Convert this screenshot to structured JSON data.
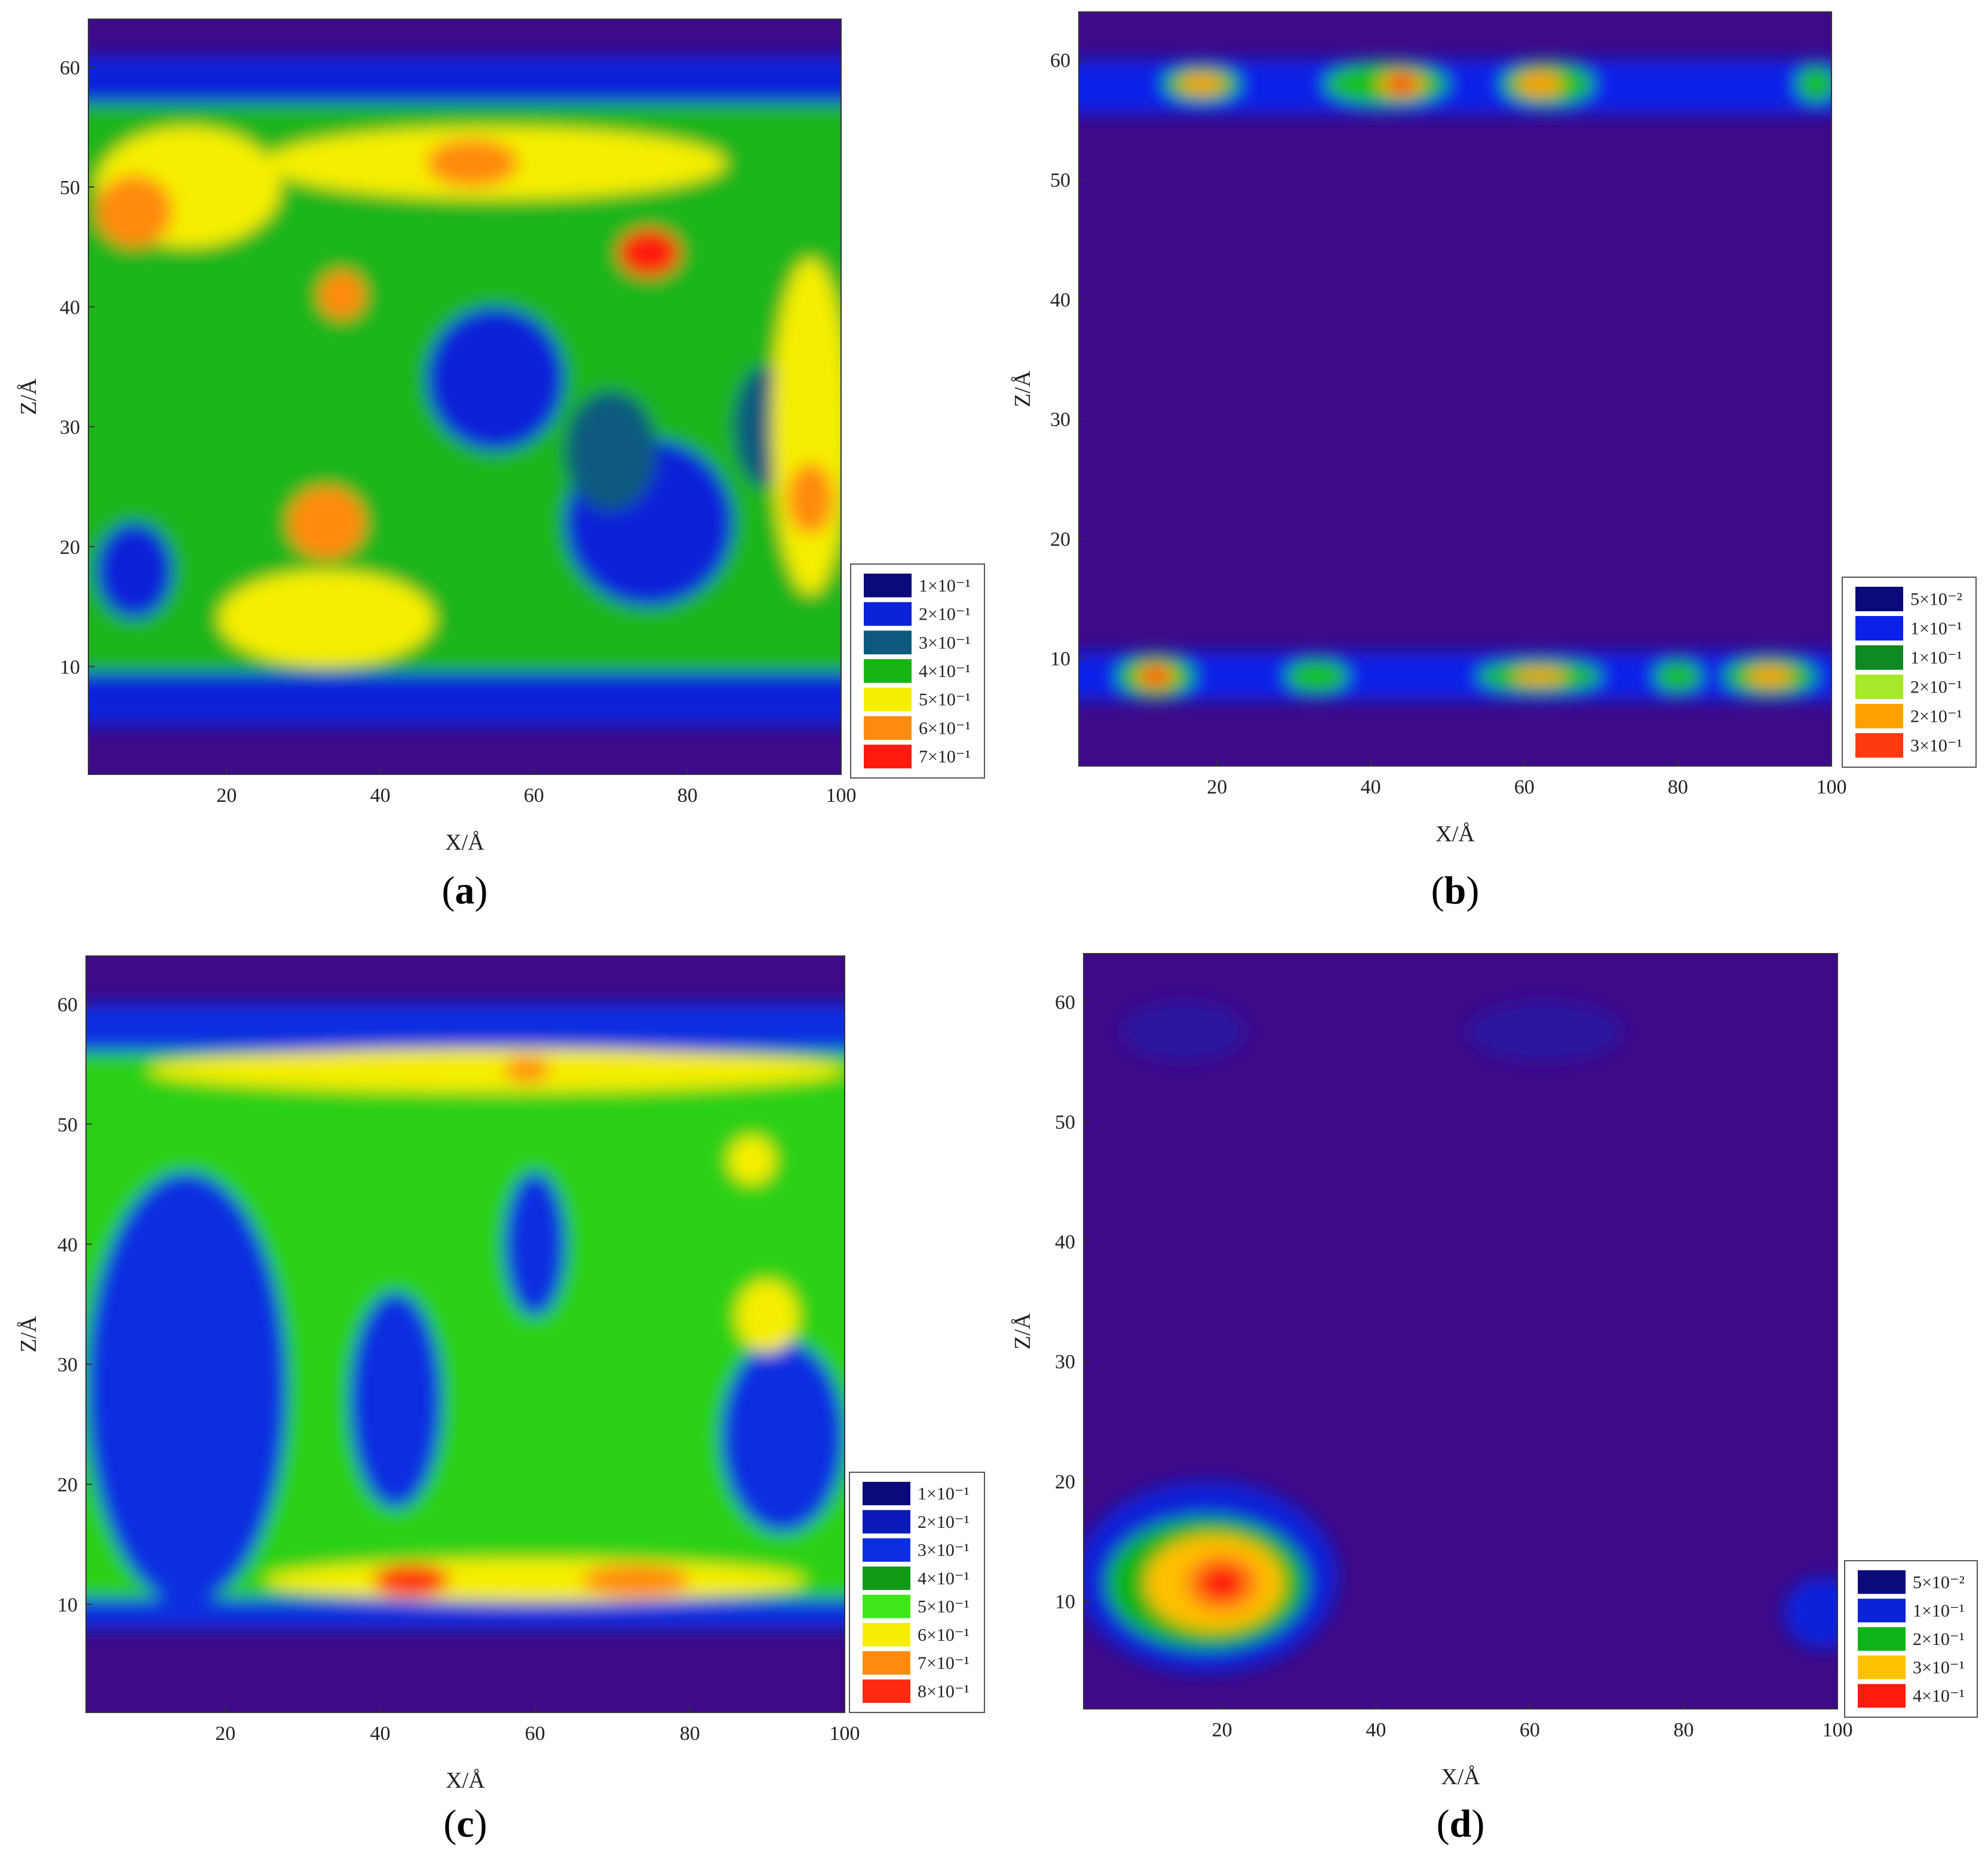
{
  "chart_data": [
    {
      "type": "heatmap",
      "panel_label": "a",
      "xlabel": "X/Å",
      "ylabel": "Z/Å",
      "xlim": [
        2,
        100
      ],
      "ylim": [
        1,
        64
      ],
      "x_ticks": [
        20,
        40,
        60,
        80,
        100
      ],
      "y_ticks": [
        10,
        20,
        30,
        40,
        50,
        60
      ],
      "legend": [
        {
          "label": "1×10⁻¹",
          "color": "#0a0a7a"
        },
        {
          "label": "2×10⁻¹",
          "color": "#0a22d8"
        },
        {
          "label": "3×10⁻¹",
          "color": "#0e5a7e"
        },
        {
          "label": "4×10⁻¹",
          "color": "#17b514"
        },
        {
          "label": "5×10⁻¹",
          "color": "#f5ee00"
        },
        {
          "label": "6×10⁻¹",
          "color": "#ff8a10"
        },
        {
          "label": "7×10⁻¹",
          "color": "#ff1a10"
        }
      ],
      "background": "#3d0a8a",
      "band_rows": [
        {
          "z": [
            5,
            9.5
          ],
          "color": "#0a22d8"
        },
        {
          "z": [
            56,
            61
          ],
          "color": "#0a22d8"
        },
        {
          "z": [
            9.5,
            57
          ],
          "color": "#1fb51a"
        }
      ],
      "regions": [
        {
          "x": 75,
          "z": 22,
          "rx": 11,
          "ry": 7,
          "color": "#0a22d8"
        },
        {
          "x": 55,
          "z": 34,
          "rx": 9,
          "ry": 6,
          "color": "#0a22d8"
        },
        {
          "x": 8,
          "z": 18,
          "rx": 5,
          "ry": 4,
          "color": "#0a22d8"
        },
        {
          "x": 70,
          "z": 28,
          "rx": 6,
          "ry": 5,
          "color": "#0e5a7e"
        },
        {
          "x": 90,
          "z": 30,
          "rx": 4,
          "ry": 5,
          "color": "#0e5a7e"
        },
        {
          "x": 15,
          "z": 50,
          "rx": 12,
          "ry": 5,
          "color": "#f5ee00"
        },
        {
          "x": 55,
          "z": 52,
          "rx": 30,
          "ry": 3,
          "color": "#f5ee00"
        },
        {
          "x": 96,
          "z": 30,
          "rx": 5,
          "ry": 14,
          "color": "#f5ee00"
        },
        {
          "x": 33,
          "z": 14,
          "rx": 14,
          "ry": 4,
          "color": "#f5ee00"
        },
        {
          "x": 8,
          "z": 48,
          "rx": 5,
          "ry": 3,
          "color": "#ff8a10"
        },
        {
          "x": 52,
          "z": 52,
          "rx": 6,
          "ry": 2,
          "color": "#ff8a10"
        },
        {
          "x": 33,
          "z": 22,
          "rx": 5,
          "ry": 3,
          "color": "#ff8a10"
        },
        {
          "x": 96,
          "z": 24,
          "rx": 3,
          "ry": 3,
          "color": "#ff8a10"
        },
        {
          "x": 75,
          "z": 44.5,
          "rx": 4,
          "ry": 2,
          "color": "#ff1a10"
        },
        {
          "x": 35,
          "z": 41,
          "rx": 3,
          "ry": 2,
          "color": "#ff8a10"
        }
      ]
    },
    {
      "type": "heatmap",
      "panel_label": "b",
      "xlabel": "X/Å",
      "ylabel": "Z/Å",
      "xlim": [
        2,
        100
      ],
      "ylim": [
        1,
        64
      ],
      "x_ticks": [
        20,
        40,
        60,
        80,
        100
      ],
      "y_ticks": [
        10,
        20,
        30,
        40,
        50,
        60
      ],
      "legend": [
        {
          "label": "5×10⁻²",
          "color": "#0a0a7a"
        },
        {
          "label": "1×10⁻¹",
          "color": "#0a22e8"
        },
        {
          "label": "1×10⁻¹",
          "color": "#0f8a22"
        },
        {
          "label": "2×10⁻¹",
          "color": "#a8e82a"
        },
        {
          "label": "2×10⁻¹",
          "color": "#ffa000"
        },
        {
          "label": "3×10⁻¹",
          "color": "#ff3a10"
        }
      ],
      "background": "#3d0a8a",
      "band_rows": [
        {
          "z": [
            55.5,
            60
          ],
          "color": "#0a22e8"
        },
        {
          "z": [
            6.5,
            10.5
          ],
          "color": "#0a22e8"
        }
      ],
      "regions": [
        {
          "x": 18,
          "z": 58,
          "rx": 5,
          "ry": 1.5,
          "color": "#18c018"
        },
        {
          "x": 42,
          "z": 58,
          "rx": 8,
          "ry": 1.8,
          "color": "#18c018"
        },
        {
          "x": 63,
          "z": 58,
          "rx": 6,
          "ry": 1.8,
          "color": "#18c018"
        },
        {
          "x": 98,
          "z": 58,
          "rx": 2.5,
          "ry": 1.5,
          "color": "#18c018"
        },
        {
          "x": 12,
          "z": 8.5,
          "rx": 5,
          "ry": 1.8,
          "color": "#18c018"
        },
        {
          "x": 33,
          "z": 8.5,
          "rx": 4,
          "ry": 1.4,
          "color": "#18c018"
        },
        {
          "x": 62,
          "z": 8.5,
          "rx": 8,
          "ry": 1.4,
          "color": "#18c018"
        },
        {
          "x": 80,
          "z": 8.5,
          "rx": 3,
          "ry": 1.3,
          "color": "#18c018"
        },
        {
          "x": 92,
          "z": 8.5,
          "rx": 6,
          "ry": 1.6,
          "color": "#18c018"
        },
        {
          "x": 18,
          "z": 58,
          "rx": 3,
          "ry": 0.8,
          "color": "#ffa000"
        },
        {
          "x": 44,
          "z": 58,
          "rx": 3,
          "ry": 1.0,
          "color": "#ffa000"
        },
        {
          "x": 62,
          "z": 58,
          "rx": 3,
          "ry": 1.0,
          "color": "#ffa000"
        },
        {
          "x": 12,
          "z": 8.5,
          "rx": 2.5,
          "ry": 1.0,
          "color": "#ffa000"
        },
        {
          "x": 62,
          "z": 8.5,
          "rx": 3.5,
          "ry": 0.6,
          "color": "#ffa000"
        },
        {
          "x": 92,
          "z": 8.5,
          "rx": 3,
          "ry": 0.8,
          "color": "#ffa000"
        },
        {
          "x": 44,
          "z": 58,
          "rx": 1.5,
          "ry": 0.8,
          "color": "#ff1a10"
        },
        {
          "x": 12,
          "z": 8.5,
          "rx": 1.5,
          "ry": 0.7,
          "color": "#ff1a10"
        }
      ]
    },
    {
      "type": "heatmap",
      "panel_label": "c",
      "xlabel": "X/Å",
      "ylabel": "Z/Å",
      "xlim": [
        2,
        100
      ],
      "ylim": [
        1,
        64
      ],
      "x_ticks": [
        20,
        40,
        60,
        80,
        100
      ],
      "y_ticks": [
        10,
        20,
        30,
        40,
        50,
        60
      ],
      "legend": [
        {
          "label": "1×10⁻¹",
          "color": "#0a0a7a"
        },
        {
          "label": "2×10⁻¹",
          "color": "#0a1ab8"
        },
        {
          "label": "3×10⁻¹",
          "color": "#0a2ee0"
        },
        {
          "label": "4×10⁻¹",
          "color": "#0f9a18"
        },
        {
          "label": "5×10⁻¹",
          "color": "#3ee81a"
        },
        {
          "label": "6×10⁻¹",
          "color": "#f5ee00"
        },
        {
          "label": "7×10⁻¹",
          "color": "#ff8a10"
        },
        {
          "label": "8×10⁻¹",
          "color": "#ff2a10"
        }
      ],
      "background": "#3d0a8a",
      "band_rows": [
        {
          "z": [
            8,
            10.5
          ],
          "color": "#0a2ee0"
        },
        {
          "z": [
            56,
            60
          ],
          "color": "#0a2ee0"
        },
        {
          "z": [
            10.5,
            56
          ],
          "color": "#2ad018"
        }
      ],
      "regions": [
        {
          "x": 15,
          "z": 28,
          "rx": 13,
          "ry": 18,
          "color": "#0a2ee0"
        },
        {
          "x": 92,
          "z": 24,
          "rx": 8,
          "ry": 8,
          "color": "#0a2ee0"
        },
        {
          "x": 42,
          "z": 27,
          "rx": 6,
          "ry": 9,
          "color": "#0a2ee0"
        },
        {
          "x": 60,
          "z": 40,
          "rx": 4,
          "ry": 6,
          "color": "#0a2ee0"
        },
        {
          "x": 55,
          "z": 54.5,
          "rx": 45,
          "ry": 1.8,
          "color": "#f5ee00"
        },
        {
          "x": 60,
          "z": 12,
          "rx": 35,
          "ry": 1.8,
          "color": "#f5ee00"
        },
        {
          "x": 44,
          "z": 12,
          "rx": 5,
          "ry": 1.3,
          "color": "#ff2a10"
        },
        {
          "x": 73,
          "z": 12,
          "rx": 7,
          "ry": 1.3,
          "color": "#ff8a10"
        },
        {
          "x": 59,
          "z": 54.5,
          "rx": 3,
          "ry": 1.0,
          "color": "#ff8a10"
        },
        {
          "x": 90,
          "z": 34,
          "rx": 4,
          "ry": 3,
          "color": "#f5ee00"
        },
        {
          "x": 88,
          "z": 47,
          "rx": 3,
          "ry": 2,
          "color": "#f5ee00"
        }
      ]
    },
    {
      "type": "heatmap",
      "panel_label": "d",
      "xlabel": "X/Å",
      "ylabel": "Z/Å",
      "xlim": [
        2,
        100
      ],
      "ylim": [
        1,
        64
      ],
      "x_ticks": [
        20,
        40,
        60,
        80,
        100
      ],
      "y_ticks": [
        10,
        20,
        30,
        40,
        50,
        60
      ],
      "legend": [
        {
          "label": "5×10⁻²",
          "color": "#0a0a7a"
        },
        {
          "label": "1×10⁻¹",
          "color": "#0a22d8"
        },
        {
          "label": "2×10⁻¹",
          "color": "#10b418"
        },
        {
          "label": "3×10⁻¹",
          "color": "#ffc000"
        },
        {
          "label": "4×10⁻¹",
          "color": "#ff1a10"
        }
      ],
      "background": "#3d0a8a",
      "band_rows": [],
      "regions": [
        {
          "x": 15,
          "z": 57.5,
          "rx": 8,
          "ry": 2.5,
          "color": "#2a12a0"
        },
        {
          "x": 62,
          "z": 57.5,
          "rx": 10,
          "ry": 2.5,
          "color": "#2a12a0"
        },
        {
          "x": 18,
          "z": 12,
          "rx": 17,
          "ry": 8,
          "color": "#0a22d8"
        },
        {
          "x": 98,
          "z": 9,
          "rx": 5,
          "ry": 3,
          "color": "#0a22d8"
        },
        {
          "x": 18,
          "z": 11.5,
          "rx": 13,
          "ry": 5.5,
          "color": "#10b418"
        },
        {
          "x": 19,
          "z": 11.5,
          "rx": 9,
          "ry": 4,
          "color": "#ffc000"
        },
        {
          "x": 20,
          "z": 11.5,
          "rx": 5,
          "ry": 2.5,
          "color": "#ff8a10"
        },
        {
          "x": 20,
          "z": 11.5,
          "rx": 3,
          "ry": 1.5,
          "color": "#ff1a10"
        }
      ]
    }
  ]
}
